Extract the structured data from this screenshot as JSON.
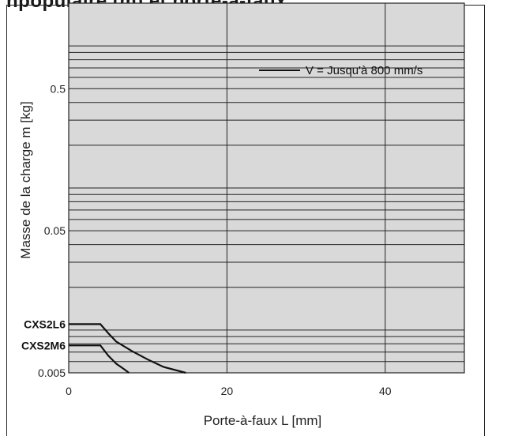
{
  "title": "npopulaire (m) et porte-a-faux",
  "chart_data": {
    "type": "line",
    "title": "",
    "xlabel": "Porte-à-faux L [mm]",
    "ylabel": "Masse de la charge m [kg]",
    "xlim": [
      0,
      50
    ],
    "ylim": [
      0.005,
      2
    ],
    "yscale": "log",
    "xticks": [
      0,
      20,
      40
    ],
    "xtick_labels": [
      "0",
      "20",
      "40"
    ],
    "yticks": [
      0.005,
      0.05,
      0.5
    ],
    "ytick_labels": [
      "0.005",
      "0.05",
      "0.5"
    ],
    "grid": true,
    "background": "#d9d9d9",
    "legend": {
      "position": "top-right",
      "entries": [
        "V = Jusqu'à 800 mm/s"
      ]
    },
    "series": [
      {
        "name": "CXS2L6",
        "points": [
          [
            0,
            0.011
          ],
          [
            4,
            0.011
          ],
          [
            5,
            0.0095
          ],
          [
            6,
            0.0083
          ],
          [
            8,
            0.0071
          ],
          [
            10,
            0.0062
          ],
          [
            12,
            0.0055
          ],
          [
            14.8,
            0.005
          ]
        ]
      },
      {
        "name": "CXS2M6",
        "points": [
          [
            0,
            0.0078
          ],
          [
            4,
            0.0078
          ],
          [
            5,
            0.0066
          ],
          [
            6,
            0.0058
          ],
          [
            7,
            0.0053
          ],
          [
            7.6,
            0.005
          ]
        ]
      }
    ]
  }
}
